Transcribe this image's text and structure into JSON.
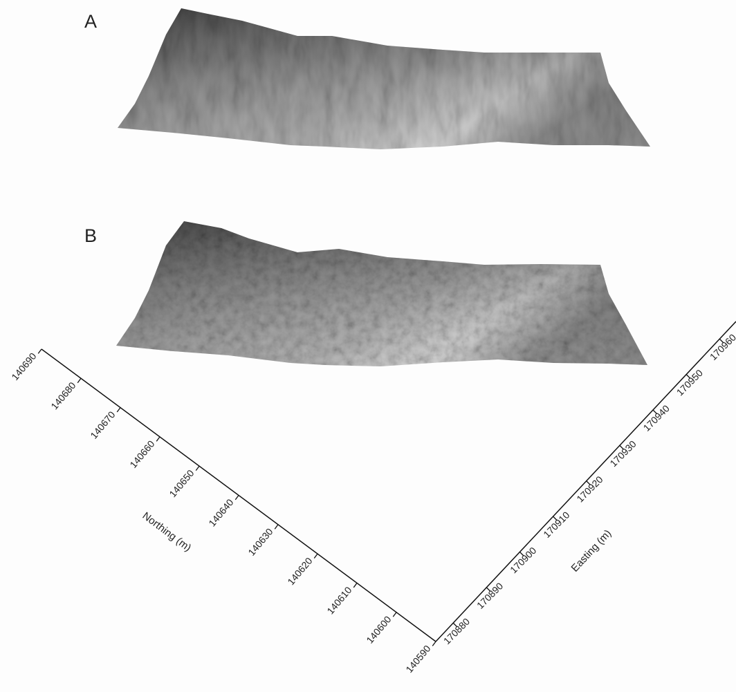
{
  "panels": [
    {
      "label": "A"
    },
    {
      "label": "B"
    }
  ],
  "northing_axis": {
    "label": "Northing (m)",
    "ticks": [
      140690,
      140680,
      140670,
      140660,
      140650,
      140640,
      140630,
      140620,
      140610,
      140600,
      140590
    ]
  },
  "easting_axis": {
    "label": "Easting (m)",
    "ticks": [
      170880,
      170890,
      170900,
      170910,
      170920,
      170930,
      170940,
      170950,
      170960
    ]
  }
}
